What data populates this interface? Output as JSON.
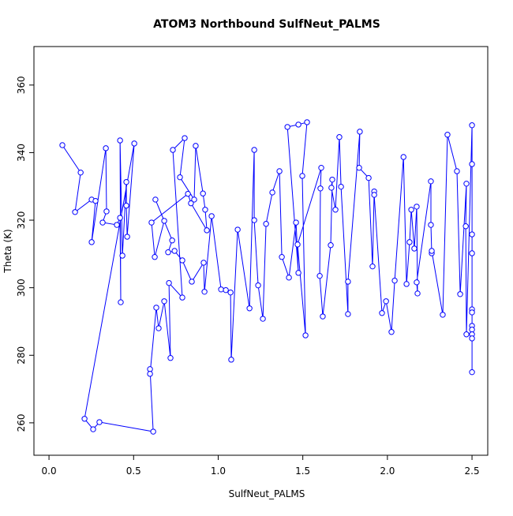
{
  "chart_data": {
    "type": "line",
    "markers": true,
    "title": "ATOM3 Northbound SulfNeut_PALMS",
    "x_label": "SulfNeut_PALMS",
    "y_label": "Theta (K)",
    "color": "#0000ff",
    "xlim": [
      -0.089,
      2.593
    ],
    "ylim": [
      250.4,
      371.4
    ],
    "xticks": [
      {
        "value": 0,
        "label": "0.0"
      },
      0.5,
      {
        "value": 1,
        "label": "1.0"
      },
      1.5,
      {
        "value": 2,
        "label": "2.0"
      },
      2.5
    ],
    "yticks": [
      260,
      280,
      300,
      320,
      340,
      360
    ],
    "x": [
      0.079,
      0.187,
      0.154,
      0.252,
      0.275,
      0.252,
      0.336,
      0.34,
      0.317,
      0.401,
      0.42,
      0.424,
      0.42,
      0.434,
      0.457,
      0.457,
      0.462,
      0.504,
      0.21,
      0.261,
      0.298,
      0.616,
      0.597,
      0.597,
      0.634,
      0.648,
      0.681,
      0.718,
      0.709,
      0.788,
      0.732,
      0.802,
      0.774,
      0.858,
      0.867,
      0.91,
      0.923,
      0.933,
      0.839,
      0.821,
      0.606,
      0.625,
      0.681,
      0.629,
      0.728,
      0.704,
      0.742,
      0.788,
      0.844,
      0.914,
      0.919,
      0.961,
      1.017,
      1.045,
      1.073,
      1.077,
      1.115,
      1.185,
      1.213,
      1.213,
      1.236,
      1.264,
      1.283,
      1.32,
      1.362,
      1.376,
      1.418,
      1.46,
      1.474,
      1.409,
      1.474,
      1.525,
      1.497,
      1.516,
      1.469,
      1.609,
      1.604,
      1.6,
      1.618,
      1.665,
      1.674,
      1.669,
      1.693,
      1.716,
      1.726,
      1.767,
      1.767,
      1.837,
      1.833,
      1.889,
      1.912,
      1.922,
      1.922,
      1.968,
      1.992,
      2.024,
      2.043,
      2.095,
      2.113,
      2.131,
      2.141,
      2.159,
      2.173,
      2.178,
      2.173,
      2.257,
      2.257,
      2.262,
      2.262,
      2.327,
      2.355,
      2.411,
      2.43,
      2.467,
      2.463,
      2.467,
      2.5,
      2.5,
      2.5,
      2.5,
      2.5,
      2.5,
      2.5,
      2.5,
      2.5,
      2.5,
      2.5
    ],
    "values": [
      342.2,
      334.1,
      322.4,
      326.1,
      325.7,
      313.5,
      341.3,
      322.6,
      319.3,
      318.6,
      320.7,
      295.7,
      343.6,
      309.5,
      331.3,
      324.3,
      315.1,
      342.7,
      261.2,
      258.1,
      260.2,
      257.4,
      275.9,
      274.5,
      294.1,
      288.0,
      296.0,
      279.2,
      301.4,
      297.1,
      340.8,
      344.3,
      332.7,
      326.1,
      342.0,
      327.9,
      323.1,
      317.0,
      325.0,
      327.8,
      319.3,
      309.1,
      319.8,
      326.1,
      314.0,
      310.5,
      310.9,
      308.1,
      301.8,
      307.4,
      298.8,
      321.2,
      299.5,
      299.3,
      298.6,
      278.7,
      317.2,
      293.9,
      340.8,
      320.0,
      300.7,
      290.8,
      318.9,
      328.2,
      334.5,
      309.1,
      303.0,
      319.3,
      304.4,
      347.6,
      348.3,
      349.0,
      333.1,
      285.9,
      312.8,
      335.5,
      329.4,
      303.5,
      291.5,
      312.6,
      332.0,
      329.6,
      323.1,
      344.6,
      329.9,
      292.2,
      301.8,
      346.2,
      335.5,
      332.5,
      306.3,
      328.5,
      327.5,
      292.5,
      296.0,
      286.9,
      302.1,
      338.7,
      301.1,
      313.5,
      323.1,
      311.6,
      324.0,
      298.3,
      301.6,
      331.5,
      318.6,
      310.2,
      310.9,
      292.0,
      345.3,
      334.5,
      298.1,
      330.8,
      318.2,
      286.2,
      348.1,
      336.6,
      315.8,
      310.2,
      293.6,
      292.7,
      288.7,
      287.6,
      286.2,
      285.0,
      275.0
    ]
  }
}
